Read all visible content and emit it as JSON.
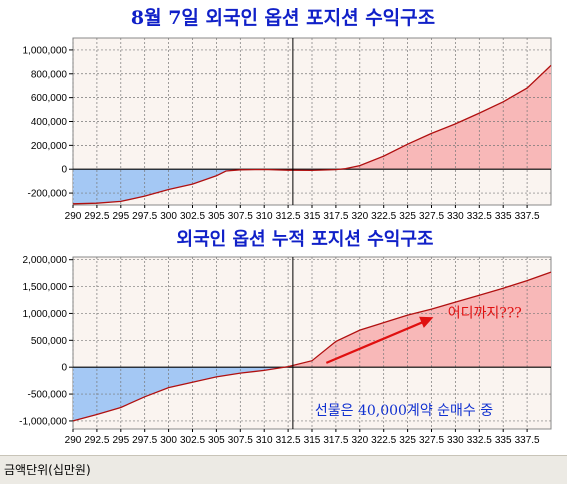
{
  "chart_data": [
    {
      "type": "area",
      "title": "8월 7일 외국인 옵션 포지션 수익구조",
      "xlabel": "",
      "ylabel": "",
      "x_ticks": [
        "290",
        "292.5",
        "295",
        "297.5",
        "300",
        "302.5",
        "305",
        "307.5",
        "310",
        "312.5",
        "315",
        "317.5",
        "320",
        "322.5",
        "325",
        "327.5",
        "330",
        "332.5",
        "335",
        "337.5"
      ],
      "xlim": [
        290,
        340
      ],
      "ylim": [
        -300000,
        1100000
      ],
      "y_ticks": [
        1000000,
        800000,
        600000,
        400000,
        200000,
        0,
        -200000
      ],
      "y_tick_labels": [
        "1,000,000",
        "800,000",
        "600,000",
        "400,000",
        "200,000",
        "0",
        "-200,000"
      ],
      "vline_x": 313,
      "grid": true,
      "series": [
        {
          "x": [
            290,
            292.5,
            295,
            297.5,
            300,
            302.5,
            305,
            306,
            307.5,
            310,
            312.5,
            315,
            317.5,
            318.5,
            320,
            322.5,
            325,
            327.5,
            330,
            332.5,
            335,
            337.5,
            340
          ],
          "values": [
            -290000,
            -285000,
            -270000,
            -225000,
            -170000,
            -125000,
            -55000,
            -15000,
            -5000,
            -2000,
            -8000,
            -10000,
            -3000,
            5000,
            30000,
            110000,
            210000,
            300000,
            380000,
            470000,
            565000,
            680000,
            870000
          ]
        }
      ],
      "colors": {
        "positive": "#f8b8b8",
        "negative": "#a4c8f4",
        "line": "#b01010",
        "background": "#faf4f0"
      }
    },
    {
      "type": "area",
      "title": "외국인 옵션 누적 포지션 수익구조",
      "xlabel": "",
      "ylabel": "",
      "x_ticks": [
        "290",
        "292.5",
        "295",
        "297.5",
        "300",
        "302.5",
        "305",
        "307.5",
        "310",
        "312.5",
        "315",
        "317.5",
        "320",
        "322.5",
        "325",
        "327.5",
        "330",
        "332.5",
        "335",
        "337.5"
      ],
      "xlim": [
        290,
        340
      ],
      "ylim": [
        -1150000,
        2050000
      ],
      "y_ticks": [
        2000000,
        1500000,
        1000000,
        500000,
        0,
        -500000,
        -1000000
      ],
      "y_tick_labels": [
        "2,000,000",
        "1,500,000",
        "1,000,000",
        "500,000",
        "0",
        "-500,000",
        "-1,000,000"
      ],
      "vline_x": 313,
      "grid": true,
      "annotations": [
        "어디까지???",
        "선물은 40,000계약 순매수 중"
      ],
      "series": [
        {
          "x": [
            290,
            292.5,
            295,
            297.5,
            300,
            302.5,
            305,
            307.5,
            310,
            312.5,
            315,
            317.5,
            320,
            322.5,
            325,
            327.5,
            330,
            332.5,
            335,
            337.5,
            340
          ],
          "values": [
            -1000000,
            -880000,
            -750000,
            -550000,
            -380000,
            -280000,
            -180000,
            -110000,
            -60000,
            10000,
            120000,
            480000,
            690000,
            830000,
            970000,
            1080000,
            1210000,
            1340000,
            1470000,
            1610000,
            1770000
          ]
        }
      ],
      "colors": {
        "positive": "#f8b8b8",
        "negative": "#a4c8f4",
        "line": "#b01010",
        "background": "#faf4f0",
        "arrow": "#e01010"
      }
    }
  ],
  "footer": {
    "unit_label": "금액단위(십만원)"
  }
}
